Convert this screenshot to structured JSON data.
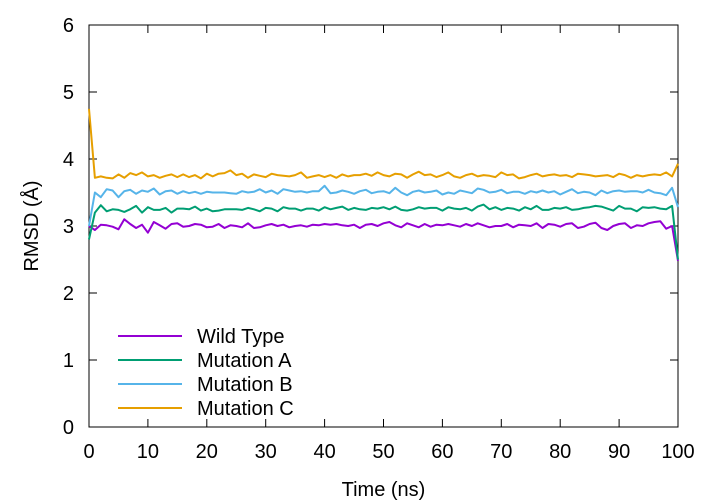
{
  "chart_data": {
    "type": "line",
    "xlabel": "Time (ns)",
    "ylabel": "RMSD (Å)",
    "xlim": [
      0,
      100
    ],
    "ylim": [
      0,
      6
    ],
    "xticks": [
      0,
      10,
      20,
      30,
      40,
      50,
      60,
      70,
      80,
      90,
      100
    ],
    "yticks": [
      0,
      1,
      2,
      3,
      4,
      5,
      6
    ],
    "grid": false,
    "legend_position": "bottom-left",
    "x": [
      0,
      1,
      2,
      3,
      4,
      5,
      6,
      7,
      8,
      9,
      10,
      11,
      12,
      13,
      14,
      15,
      16,
      17,
      18,
      19,
      20,
      21,
      22,
      23,
      24,
      25,
      26,
      27,
      28,
      29,
      30,
      31,
      32,
      33,
      34,
      35,
      36,
      37,
      38,
      39,
      40,
      41,
      42,
      43,
      44,
      45,
      46,
      47,
      48,
      49,
      50,
      51,
      52,
      53,
      54,
      55,
      56,
      57,
      58,
      59,
      60,
      61,
      62,
      63,
      64,
      65,
      66,
      67,
      68,
      69,
      70,
      71,
      72,
      73,
      74,
      75,
      76,
      77,
      78,
      79,
      80,
      81,
      82,
      83,
      84,
      85,
      86,
      87,
      88,
      89,
      90,
      91,
      92,
      93,
      94,
      95,
      96,
      97,
      98,
      99,
      100
    ],
    "series": [
      {
        "name": "Wild Type",
        "color": "#9400d3",
        "values": [
          3.0,
          2.94,
          3.02,
          3.01,
          2.99,
          2.95,
          3.1,
          3.03,
          2.97,
          3.02,
          2.9,
          3.06,
          3.01,
          2.96,
          3.03,
          3.04,
          2.99,
          3.0,
          3.03,
          3.02,
          2.98,
          2.99,
          3.03,
          2.97,
          3.01,
          3.0,
          2.98,
          3.04,
          2.97,
          2.98,
          3.01,
          3.03,
          3.0,
          3.02,
          2.98,
          3.0,
          3.01,
          2.99,
          3.02,
          3.01,
          3.03,
          3.02,
          3.03,
          3.01,
          3.0,
          3.02,
          2.97,
          3.02,
          3.03,
          3.0,
          3.04,
          3.06,
          3.01,
          2.98,
          3.04,
          3.01,
          2.98,
          3.03,
          2.99,
          3.02,
          3.01,
          3.03,
          3.01,
          2.99,
          3.03,
          3.0,
          3.04,
          3.01,
          2.98,
          3.0,
          3.0,
          3.03,
          2.98,
          3.02,
          3.01,
          3.0,
          3.04,
          2.97,
          3.03,
          3.02,
          2.99,
          3.03,
          3.04,
          2.97,
          2.99,
          3.03,
          3.05,
          2.97,
          2.94,
          3.0,
          3.03,
          3.04,
          2.97,
          3.01,
          3.0,
          3.04,
          3.06,
          3.07,
          2.96,
          3.0,
          2.48
        ]
      },
      {
        "name": "Mutation A",
        "color": "#009e73",
        "values": [
          2.8,
          3.2,
          3.31,
          3.22,
          3.25,
          3.24,
          3.21,
          3.25,
          3.3,
          3.2,
          3.28,
          3.24,
          3.24,
          3.27,
          3.2,
          3.26,
          3.26,
          3.25,
          3.29,
          3.23,
          3.26,
          3.22,
          3.23,
          3.25,
          3.25,
          3.25,
          3.24,
          3.27,
          3.25,
          3.22,
          3.27,
          3.26,
          3.22,
          3.28,
          3.26,
          3.26,
          3.23,
          3.26,
          3.26,
          3.23,
          3.28,
          3.25,
          3.27,
          3.29,
          3.24,
          3.27,
          3.25,
          3.24,
          3.27,
          3.26,
          3.28,
          3.25,
          3.29,
          3.24,
          3.23,
          3.25,
          3.28,
          3.26,
          3.27,
          3.27,
          3.23,
          3.28,
          3.26,
          3.25,
          3.27,
          3.23,
          3.29,
          3.32,
          3.25,
          3.28,
          3.24,
          3.27,
          3.26,
          3.23,
          3.28,
          3.25,
          3.3,
          3.24,
          3.24,
          3.27,
          3.26,
          3.28,
          3.24,
          3.25,
          3.27,
          3.28,
          3.3,
          3.29,
          3.26,
          3.23,
          3.3,
          3.26,
          3.26,
          3.22,
          3.28,
          3.27,
          3.28,
          3.26,
          3.25,
          3.3,
          2.5
        ]
      },
      {
        "name": "Mutation B",
        "color": "#56b4e9",
        "values": [
          3.0,
          3.5,
          3.43,
          3.55,
          3.53,
          3.43,
          3.52,
          3.54,
          3.48,
          3.53,
          3.51,
          3.56,
          3.47,
          3.52,
          3.53,
          3.48,
          3.52,
          3.49,
          3.51,
          3.48,
          3.51,
          3.5,
          3.5,
          3.5,
          3.49,
          3.48,
          3.52,
          3.5,
          3.51,
          3.55,
          3.5,
          3.53,
          3.48,
          3.55,
          3.53,
          3.51,
          3.52,
          3.5,
          3.52,
          3.52,
          3.6,
          3.49,
          3.5,
          3.53,
          3.51,
          3.48,
          3.52,
          3.54,
          3.49,
          3.51,
          3.52,
          3.49,
          3.57,
          3.5,
          3.46,
          3.51,
          3.53,
          3.5,
          3.51,
          3.53,
          3.47,
          3.5,
          3.48,
          3.53,
          3.51,
          3.49,
          3.56,
          3.54,
          3.5,
          3.51,
          3.54,
          3.49,
          3.51,
          3.51,
          3.48,
          3.52,
          3.5,
          3.53,
          3.5,
          3.52,
          3.47,
          3.51,
          3.55,
          3.49,
          3.51,
          3.5,
          3.46,
          3.53,
          3.49,
          3.52,
          3.53,
          3.51,
          3.52,
          3.52,
          3.5,
          3.54,
          3.5,
          3.49,
          3.46,
          3.57,
          3.28
        ]
      },
      {
        "name": "Mutation C",
        "color": "#e69f00",
        "values": [
          4.75,
          3.72,
          3.74,
          3.72,
          3.71,
          3.77,
          3.72,
          3.79,
          3.76,
          3.8,
          3.74,
          3.76,
          3.72,
          3.75,
          3.77,
          3.73,
          3.77,
          3.73,
          3.76,
          3.71,
          3.78,
          3.74,
          3.78,
          3.79,
          3.83,
          3.76,
          3.78,
          3.72,
          3.77,
          3.75,
          3.73,
          3.78,
          3.76,
          3.75,
          3.74,
          3.76,
          3.8,
          3.72,
          3.74,
          3.76,
          3.73,
          3.76,
          3.72,
          3.77,
          3.74,
          3.76,
          3.76,
          3.78,
          3.75,
          3.8,
          3.76,
          3.74,
          3.78,
          3.77,
          3.72,
          3.77,
          3.81,
          3.76,
          3.77,
          3.73,
          3.76,
          3.8,
          3.74,
          3.72,
          3.76,
          3.78,
          3.74,
          3.76,
          3.75,
          3.73,
          3.8,
          3.76,
          3.77,
          3.71,
          3.73,
          3.76,
          3.78,
          3.74,
          3.76,
          3.77,
          3.75,
          3.76,
          3.73,
          3.78,
          3.77,
          3.76,
          3.74,
          3.75,
          3.76,
          3.73,
          3.78,
          3.76,
          3.72,
          3.76,
          3.74,
          3.76,
          3.77,
          3.76,
          3.8,
          3.74,
          3.93
        ]
      }
    ]
  }
}
